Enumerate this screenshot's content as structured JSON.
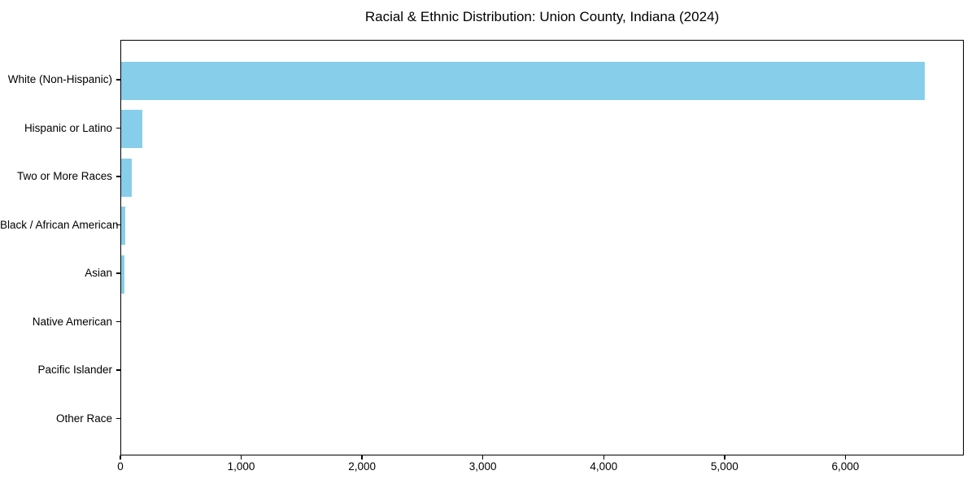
{
  "chart_data": {
    "type": "bar",
    "orientation": "horizontal",
    "title": "Racial & Ethnic Distribution: Union County, Indiana (2024)",
    "categories": [
      "White (Non-Hispanic)",
      "Hispanic or Latino",
      "Two or More Races",
      "Black / African American",
      "Asian",
      "Native American",
      "Pacific Islander",
      "Other Race"
    ],
    "values": [
      6650,
      175,
      90,
      35,
      25,
      0,
      0,
      0
    ],
    "xlabel": "",
    "ylabel": "",
    "xlim": [
      0,
      6980
    ],
    "xticks": [
      0,
      1000,
      2000,
      3000,
      4000,
      5000,
      6000
    ],
    "xtick_labels": [
      "0",
      "1,000",
      "2,000",
      "3,000",
      "4,000",
      "5,000",
      "6,000"
    ],
    "bar_color": "#87ceeb",
    "axis_color": "#000000",
    "text_color": "#000000",
    "background_color": "#ffffff",
    "grid": false,
    "legend": null
  }
}
